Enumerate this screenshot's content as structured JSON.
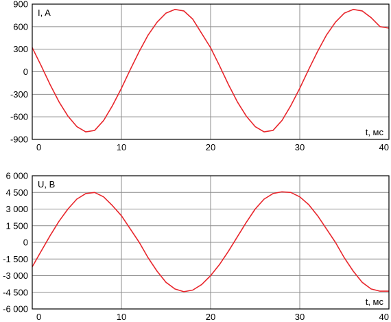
{
  "chart_data": [
    {
      "type": "line",
      "ylabel": "I, A",
      "xlabel": "t, мс",
      "xlim": [
        0,
        40
      ],
      "ylim": [
        -900,
        900
      ],
      "x_ticks": [
        0,
        10,
        20,
        30,
        40
      ],
      "x_tick_labels": [
        "0",
        "10",
        "20",
        "30",
        "40"
      ],
      "y_ticks": [
        900,
        600,
        300,
        0,
        -300,
        -600,
        -900
      ],
      "y_tick_labels": [
        "900",
        "600",
        "300",
        "0",
        "-300",
        "-600",
        "-900"
      ],
      "grid": true,
      "series": [
        {
          "color": "#e8262c",
          "x": [
            -1,
            0,
            1,
            2,
            3,
            4,
            5,
            6,
            7,
            8,
            9,
            10,
            11,
            12,
            13,
            14,
            15,
            16,
            17,
            18,
            19,
            20,
            21,
            22,
            23,
            24,
            25,
            26,
            27,
            28,
            29,
            30,
            31,
            32,
            33,
            34,
            35,
            36,
            37,
            38,
            39,
            40
          ],
          "y": [
            450,
            320,
            80,
            -170,
            -400,
            -590,
            -730,
            -800,
            -780,
            -650,
            -450,
            -220,
            30,
            270,
            490,
            660,
            780,
            830,
            810,
            700,
            510,
            320,
            80,
            -170,
            -400,
            -590,
            -730,
            -800,
            -780,
            -650,
            -450,
            -220,
            30,
            270,
            490,
            660,
            780,
            830,
            810,
            720,
            600,
            580
          ]
        }
      ]
    },
    {
      "type": "line",
      "ylabel": "U, В",
      "xlabel": "t, мс",
      "xlim": [
        0,
        40
      ],
      "ylim": [
        -6000,
        6000
      ],
      "x_ticks": [
        0,
        10,
        20,
        30,
        40
      ],
      "x_tick_labels": [
        "0",
        "10",
        "20",
        "30",
        "40"
      ],
      "y_ticks": [
        6000,
        4500,
        3000,
        1500,
        0,
        -1500,
        -3000,
        -4500,
        -6000
      ],
      "y_tick_labels": [
        "6 000",
        "4 500",
        "3 000",
        "1 500",
        "0",
        "-1 500",
        "-3 000",
        "-4 500",
        "-6 000"
      ],
      "grid": true,
      "series": [
        {
          "color": "#e8262c",
          "x": [
            -1,
            0,
            1,
            2,
            3,
            4,
            5,
            6,
            7,
            8,
            9,
            10,
            11,
            12,
            13,
            14,
            15,
            16,
            17,
            18,
            19,
            20,
            21,
            22,
            23,
            24,
            25,
            26,
            27,
            28,
            29,
            30,
            31,
            32,
            33,
            34,
            35,
            36,
            37,
            38,
            39,
            40
          ],
          "y": [
            -3300,
            -2200,
            -800,
            600,
            1900,
            3000,
            3900,
            4400,
            4500,
            4100,
            3300,
            2400,
            1200,
            0,
            -1400,
            -2600,
            -3600,
            -4200,
            -4450,
            -4300,
            -3800,
            -3000,
            -2000,
            -800,
            500,
            1800,
            3000,
            3900,
            4400,
            4550,
            4500,
            4100,
            3400,
            2400,
            1200,
            0,
            -1400,
            -2600,
            -3600,
            -4200,
            -4400,
            -4400
          ]
        }
      ]
    }
  ]
}
